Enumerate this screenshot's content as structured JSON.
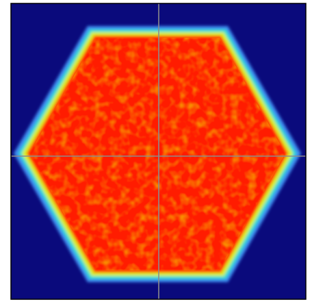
{
  "heatmap": {
    "shape": "hexagon",
    "colormap": "jet",
    "crosshair_visible": true,
    "colors": {
      "background": "#0a0a7c",
      "edge_outer": "#3d8df0",
      "edge_mid": "#36e0d2",
      "edge_inner": "#d8ee22",
      "fill": "#ff1e00",
      "fill_noise": "#f05a00",
      "crosshair": "#8c8c8c",
      "frame": "#000000"
    }
  }
}
